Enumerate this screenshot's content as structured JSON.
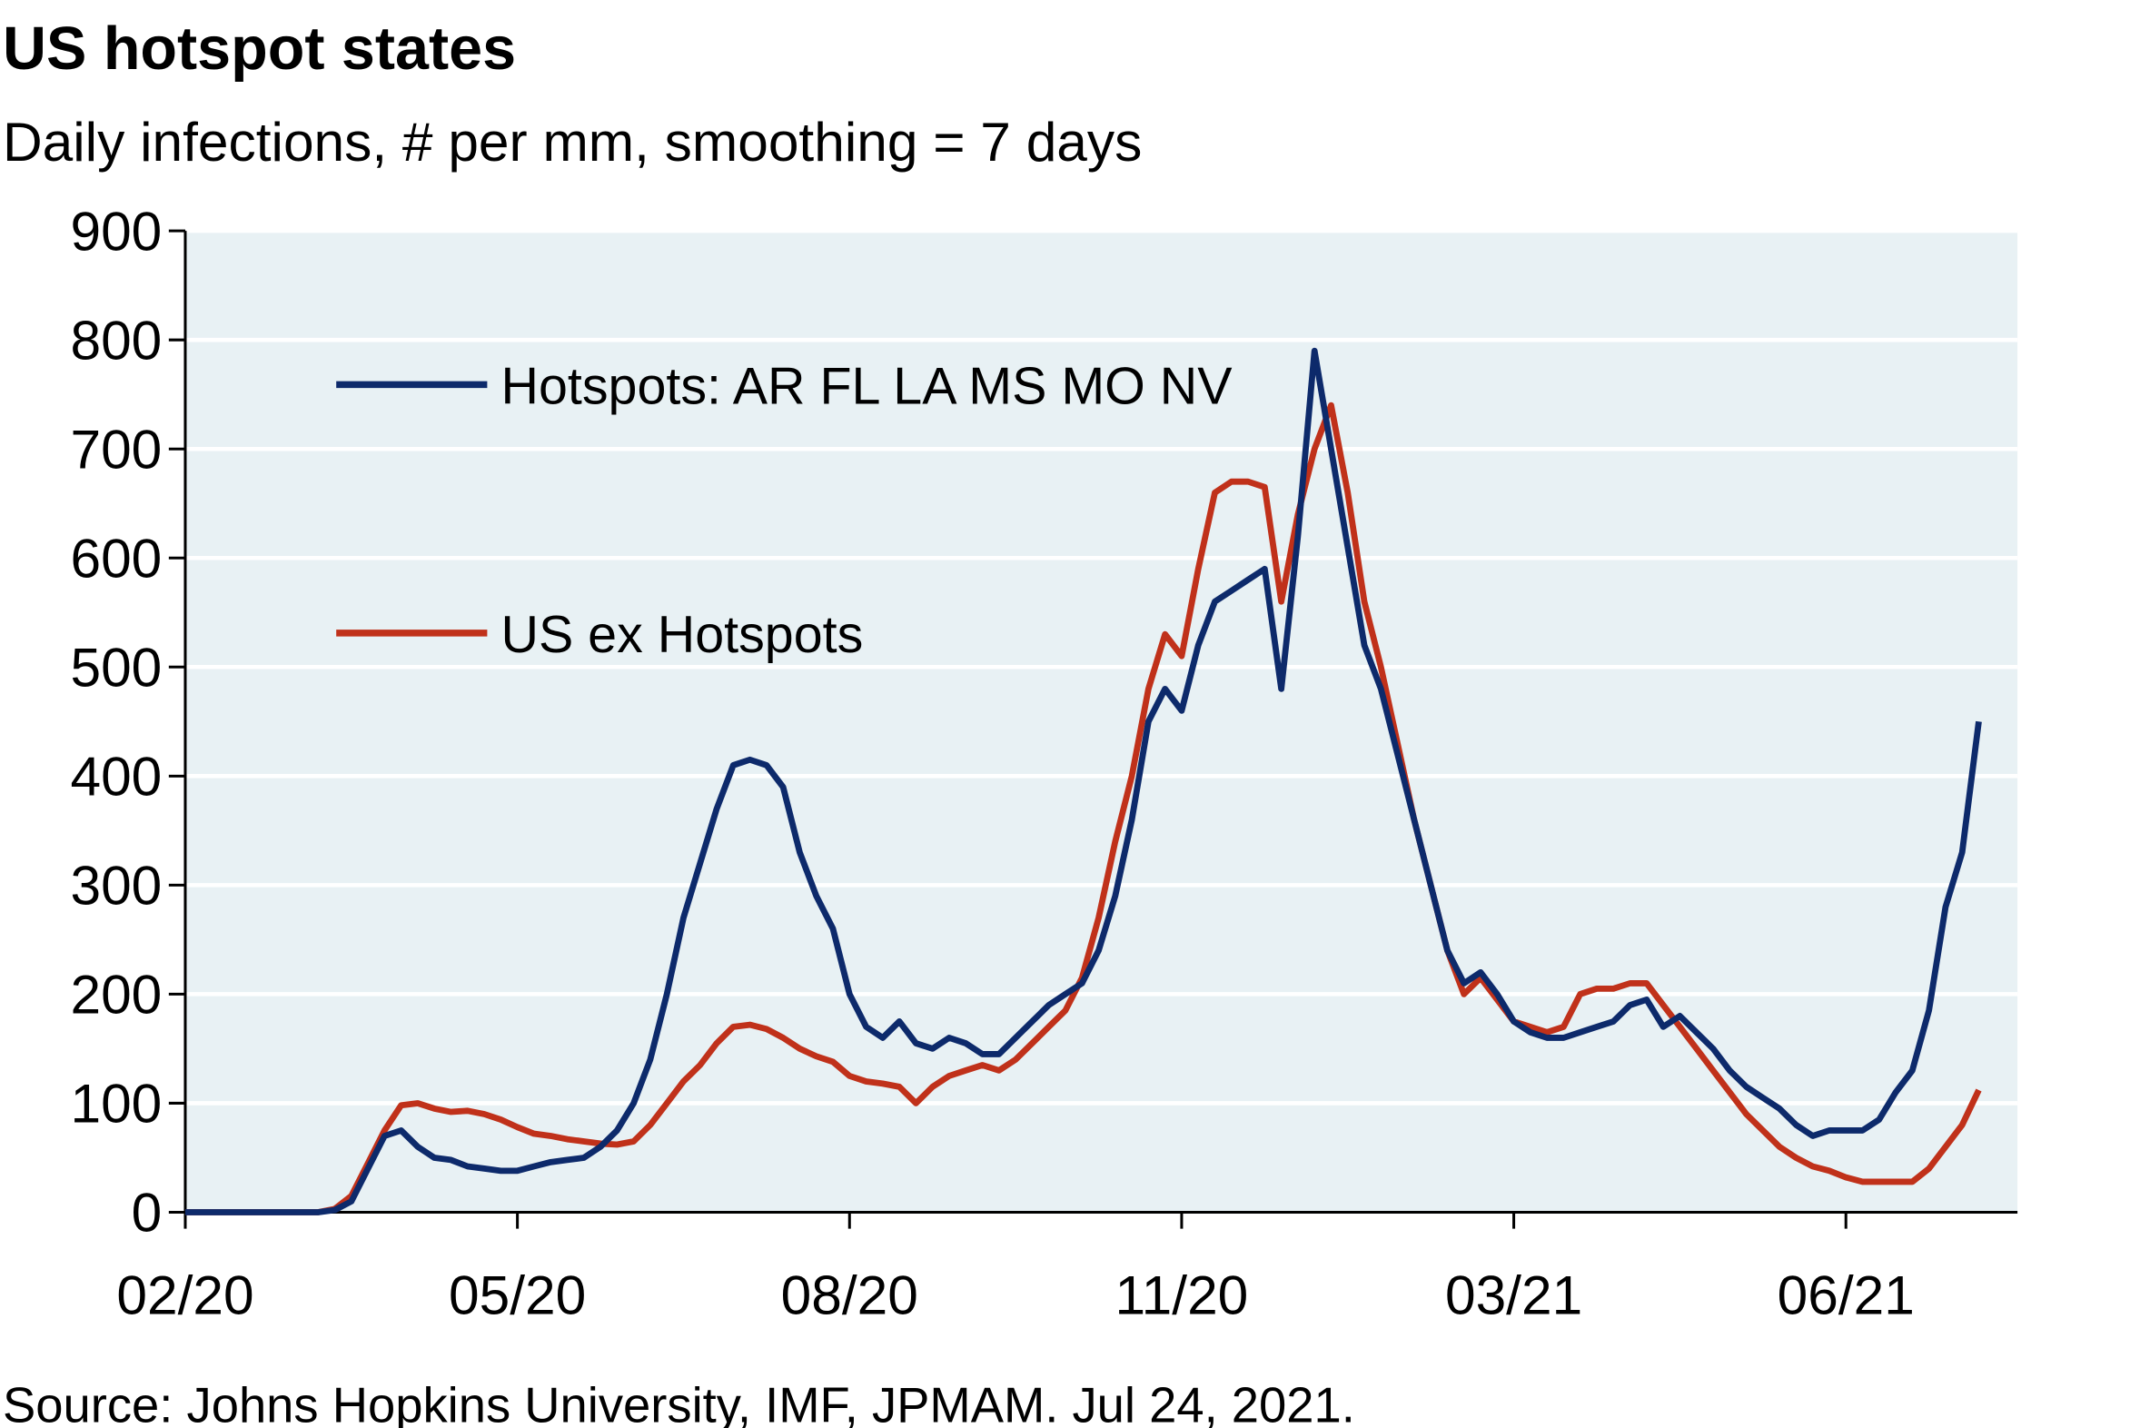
{
  "chart_data": {
    "type": "line",
    "title": "US hotspot states",
    "subtitle": "Daily infections, # per mm, smoothing = 7 days",
    "source": "Source: Johns Hopkins University, IMF, JPMAM. Jul 24, 2021.",
    "categories": [
      "02/20",
      null,
      null,
      null,
      null,
      null,
      null,
      null,
      null,
      null,
      null,
      null,
      null,
      null,
      null,
      null,
      null,
      null,
      null,
      null,
      "05/20",
      null,
      null,
      null,
      null,
      null,
      null,
      null,
      null,
      null,
      null,
      null,
      null,
      null,
      null,
      null,
      null,
      null,
      null,
      null,
      "08/20",
      null,
      null,
      null,
      null,
      null,
      null,
      null,
      null,
      null,
      null,
      null,
      null,
      null,
      null,
      null,
      null,
      null,
      null,
      null,
      "11/20",
      null,
      null,
      null,
      null,
      null,
      null,
      null,
      null,
      null,
      null,
      null,
      null,
      null,
      null,
      null,
      null,
      null,
      null,
      null,
      "03/21",
      null,
      null,
      null,
      null,
      null,
      null,
      null,
      null,
      null,
      null,
      null,
      null,
      null,
      null,
      null,
      null,
      null,
      null,
      null,
      "06/21",
      null,
      null,
      null,
      null,
      null,
      null,
      null,
      null
    ],
    "series": [
      {
        "name": "Hotspots:  AR FL LA MS MO NV",
        "color": "#0d2a6b",
        "values": [
          0,
          0,
          0,
          0,
          0,
          0,
          0,
          0,
          0,
          2,
          10,
          40,
          70,
          75,
          60,
          50,
          48,
          42,
          40,
          38,
          38,
          42,
          46,
          48,
          50,
          60,
          75,
          100,
          140,
          200,
          270,
          320,
          370,
          410,
          415,
          410,
          390,
          330,
          290,
          260,
          200,
          170,
          160,
          175,
          155,
          150,
          160,
          155,
          145,
          145,
          160,
          175,
          190,
          200,
          210,
          240,
          290,
          360,
          450,
          480,
          460,
          520,
          560,
          570,
          580,
          590,
          480,
          620,
          790,
          700,
          610,
          520,
          480,
          420,
          360,
          300,
          240,
          210,
          220,
          200,
          175,
          165,
          160,
          160,
          165,
          170,
          175,
          190,
          195,
          170,
          180,
          165,
          150,
          130,
          115,
          105,
          95,
          80,
          70,
          75,
          75,
          75,
          85,
          110,
          130,
          185,
          280,
          330,
          450
        ]
      },
      {
        "name": "US ex Hotspots",
        "color": "#c0311a",
        "values": [
          0,
          0,
          0,
          0,
          0,
          0,
          0,
          0,
          0,
          3,
          15,
          45,
          75,
          98,
          100,
          95,
          92,
          93,
          90,
          85,
          78,
          72,
          70,
          67,
          65,
          63,
          62,
          65,
          80,
          100,
          120,
          135,
          155,
          170,
          172,
          168,
          160,
          150,
          143,
          138,
          125,
          120,
          118,
          115,
          100,
          115,
          125,
          130,
          135,
          130,
          140,
          155,
          170,
          185,
          215,
          270,
          340,
          400,
          480,
          530,
          510,
          590,
          660,
          670,
          670,
          665,
          560,
          640,
          700,
          740,
          660,
          560,
          500,
          430,
          360,
          300,
          240,
          200,
          215,
          195,
          175,
          170,
          165,
          170,
          200,
          205,
          205,
          210,
          210,
          190,
          170,
          150,
          130,
          110,
          90,
          75,
          60,
          50,
          42,
          38,
          32,
          28,
          28,
          28,
          28,
          40,
          60,
          80,
          112
        ]
      }
    ],
    "ylim": [
      0,
      900
    ],
    "yticks": [
      0,
      100,
      200,
      300,
      400,
      500,
      600,
      700,
      800,
      900
    ],
    "grid": true,
    "legend": "upper left"
  }
}
